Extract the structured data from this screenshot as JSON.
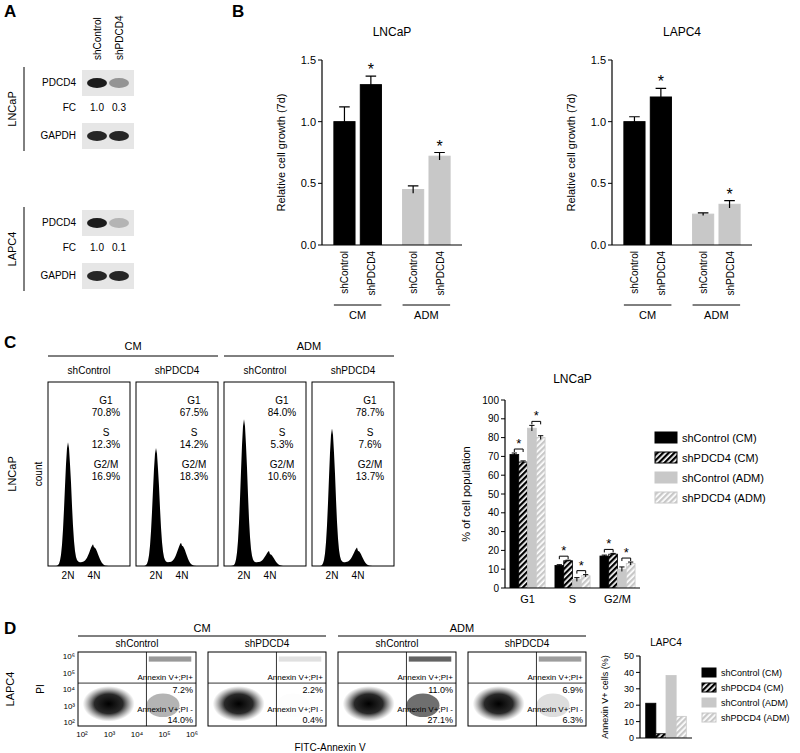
{
  "panel_labels": [
    "A",
    "B",
    "C",
    "D"
  ],
  "western": {
    "lanes": [
      "shControl",
      "shPDCD4"
    ],
    "blots": [
      {
        "cell_line": "LNCaP",
        "proteins": [
          "PDCD4",
          "GAPDH"
        ],
        "fc_label": "FC",
        "fc": [
          "1.0",
          "0.3"
        ]
      },
      {
        "cell_line": "LAPC4",
        "proteins": [
          "PDCD4",
          "GAPDH"
        ],
        "fc_label": "FC",
        "fc": [
          "1.0",
          "0.1"
        ]
      }
    ]
  },
  "chart_data": [
    {
      "type": "bar",
      "title": "LNCaP",
      "y_label": "Relative cell growth (7d)",
      "categories": [
        "shControl",
        "shPDCD4",
        "shControl",
        "shPDCD4"
      ],
      "group_labels": [
        "CM",
        "ADM"
      ],
      "values": [
        1.0,
        1.3,
        0.45,
        0.72
      ],
      "errors": [
        0.12,
        0.07,
        0.03,
        0.03
      ],
      "colors": [
        "#000000",
        "#000000",
        "#c8c8c8",
        "#c8c8c8"
      ],
      "annotations": [
        {
          "index": 1,
          "text": "*"
        },
        {
          "index": 3,
          "text": "*"
        }
      ],
      "ylim": [
        0,
        1.5
      ],
      "yticks": [
        {
          "value": 0,
          "label": "0.0"
        },
        0.5,
        {
          "value": 1,
          "label": "1.0"
        },
        1.5
      ]
    },
    {
      "type": "bar",
      "title": "LAPC4",
      "y_label": "Relative cell growth (7d)",
      "categories": [
        "shControl",
        "shPDCD4",
        "shControl",
        "shPDCD4"
      ],
      "group_labels": [
        "CM",
        "ADM"
      ],
      "values": [
        1.0,
        1.2,
        0.25,
        0.33
      ],
      "errors": [
        0.04,
        0.07,
        0.01,
        0.03
      ],
      "colors": [
        "#000000",
        "#000000",
        "#c8c8c8",
        "#c8c8c8"
      ],
      "annotations": [
        {
          "index": 1,
          "text": "*"
        },
        {
          "index": 3,
          "text": "*"
        }
      ],
      "ylim": [
        0,
        1.5
      ],
      "yticks": [
        {
          "value": 0,
          "label": "0.0"
        },
        0.5,
        {
          "value": 1,
          "label": "1.0"
        },
        1.5
      ]
    },
    {
      "type": "bar",
      "title": "LNCaP",
      "y_label": "% of cell population",
      "categories": [
        "G1",
        "S",
        "G2/M"
      ],
      "series": [
        {
          "name": "shControl (CM)",
          "color": "#000000",
          "line_style": "solid",
          "values": [
            71,
            12,
            17
          ],
          "errors": [
            0.8,
            0.4,
            0.5
          ]
        },
        {
          "name": "shPDCD4 (CM)",
          "color": "#000000",
          "line_style": "hatched",
          "values": [
            67,
            14.5,
            18
          ],
          "errors": [
            0.6,
            0.3,
            0.4
          ]
        },
        {
          "name": "shControl (ADM)",
          "color": "#c8c8c8",
          "line_style": "solid",
          "values": [
            85,
            4.5,
            10
          ],
          "errors": [
            1.5,
            1.0,
            1.2
          ]
        },
        {
          "name": "shPDCD4 (ADM)",
          "color": "#c8c8c8",
          "line_style": "hatched",
          "values": [
            80,
            6.5,
            13
          ],
          "errors": [
            1.0,
            0.6,
            0.8
          ]
        }
      ],
      "annotations": [
        {
          "category": 0,
          "series": [
            0,
            1
          ],
          "text": "*"
        },
        {
          "category": 0,
          "series": [
            2,
            3
          ],
          "text": "*"
        },
        {
          "category": 1,
          "series": [
            0,
            1
          ],
          "text": "*"
        },
        {
          "category": 1,
          "series": [
            2,
            3
          ],
          "text": "*"
        },
        {
          "category": 2,
          "series": [
            0,
            1
          ],
          "text": "*"
        },
        {
          "category": 2,
          "series": [
            2,
            3
          ],
          "text": "*"
        }
      ],
      "legend": "right",
      "ylim": [
        0,
        100
      ],
      "yticks": [
        0,
        10,
        20,
        30,
        40,
        50,
        60,
        70,
        80,
        90,
        100
      ]
    },
    {
      "type": "bar",
      "title": "LAPC4",
      "y_label": "Annexin V+ cells (%)",
      "categories": [
        null
      ],
      "series": [
        {
          "name": "shControl (CM)",
          "color": "#000000",
          "line_style": "solid",
          "values": [
            21.2
          ]
        },
        {
          "name": "shPDCD4 (CM)",
          "color": "#000000",
          "line_style": "hatched",
          "values": [
            2.6
          ]
        },
        {
          "name": "shControl (ADM)",
          "color": "#c8c8c8",
          "line_style": "solid",
          "values": [
            38.1
          ]
        },
        {
          "name": "shPDCD4 (ADM)",
          "color": "#c8c8c8",
          "line_style": "hatched",
          "values": [
            13.2
          ]
        }
      ],
      "legend": "right",
      "ylim": [
        0,
        50
      ],
      "yticks": [
        0,
        10,
        20,
        30,
        40,
        50
      ]
    }
  ],
  "cell_cycle": {
    "row_label": "LNCaP",
    "y_label": "count",
    "x_ticks": [
      "2N",
      "4N"
    ],
    "conditions": [
      {
        "name": "CM",
        "samples": [
          {
            "name": "shControl",
            "phases": [
              {
                "phase": "G1",
                "pct": "70.8%"
              },
              {
                "phase": "S",
                "pct": "12.3%"
              },
              {
                "phase": "G2/M",
                "pct": "16.9%"
              }
            ]
          },
          {
            "name": "shPDCD4",
            "phases": [
              {
                "phase": "G1",
                "pct": "67.5%"
              },
              {
                "phase": "S",
                "pct": "14.2%"
              },
              {
                "phase": "G2/M",
                "pct": "18.3%"
              }
            ]
          }
        ]
      },
      {
        "name": "ADM",
        "samples": [
          {
            "name": "shControl",
            "phases": [
              {
                "phase": "G1",
                "pct": "84.0%"
              },
              {
                "phase": "S",
                "pct": "5.3%"
              },
              {
                "phase": "G2/M",
                "pct": "10.6%"
              }
            ]
          },
          {
            "name": "shPDCD4",
            "phases": [
              {
                "phase": "G1",
                "pct": "78.7%"
              },
              {
                "phase": "S",
                "pct": "7.6%"
              },
              {
                "phase": "G2/M",
                "pct": "13.7%"
              }
            ]
          }
        ]
      }
    ]
  },
  "apoptosis": {
    "row_label": "LAPC4",
    "y_label": "PI",
    "x_label": "FITC-Annexin V",
    "ticks": [
      "10²",
      "10³",
      "10⁴",
      "10⁵",
      "10⁶"
    ],
    "conditions": [
      {
        "name": "CM",
        "samples": [
          {
            "name": "shControl",
            "quadrants": [
              {
                "label": "Annexin V+;PI+",
                "pct": "7.2%"
              },
              {
                "label": "Annexin V+;PI -",
                "pct": "14.0%"
              }
            ]
          },
          {
            "name": "shPDCD4",
            "quadrants": [
              {
                "label": "Annexin V+;PI+",
                "pct": "2.2%"
              },
              {
                "label": "Annexin V+;PI -",
                "pct": "0.4%"
              }
            ]
          }
        ]
      },
      {
        "name": "ADM",
        "samples": [
          {
            "name": "shControl",
            "quadrants": [
              {
                "label": "Annexin V+;PI+",
                "pct": "11.0%"
              },
              {
                "label": "Annexin V+;PI -",
                "pct": "27.1%"
              }
            ]
          },
          {
            "name": "shPDCD4",
            "quadrants": [
              {
                "label": "Annexin V+;PI+",
                "pct": "6.9%"
              },
              {
                "label": "Annexin V+;PI -",
                "pct": "6.3%"
              }
            ]
          }
        ]
      }
    ]
  }
}
